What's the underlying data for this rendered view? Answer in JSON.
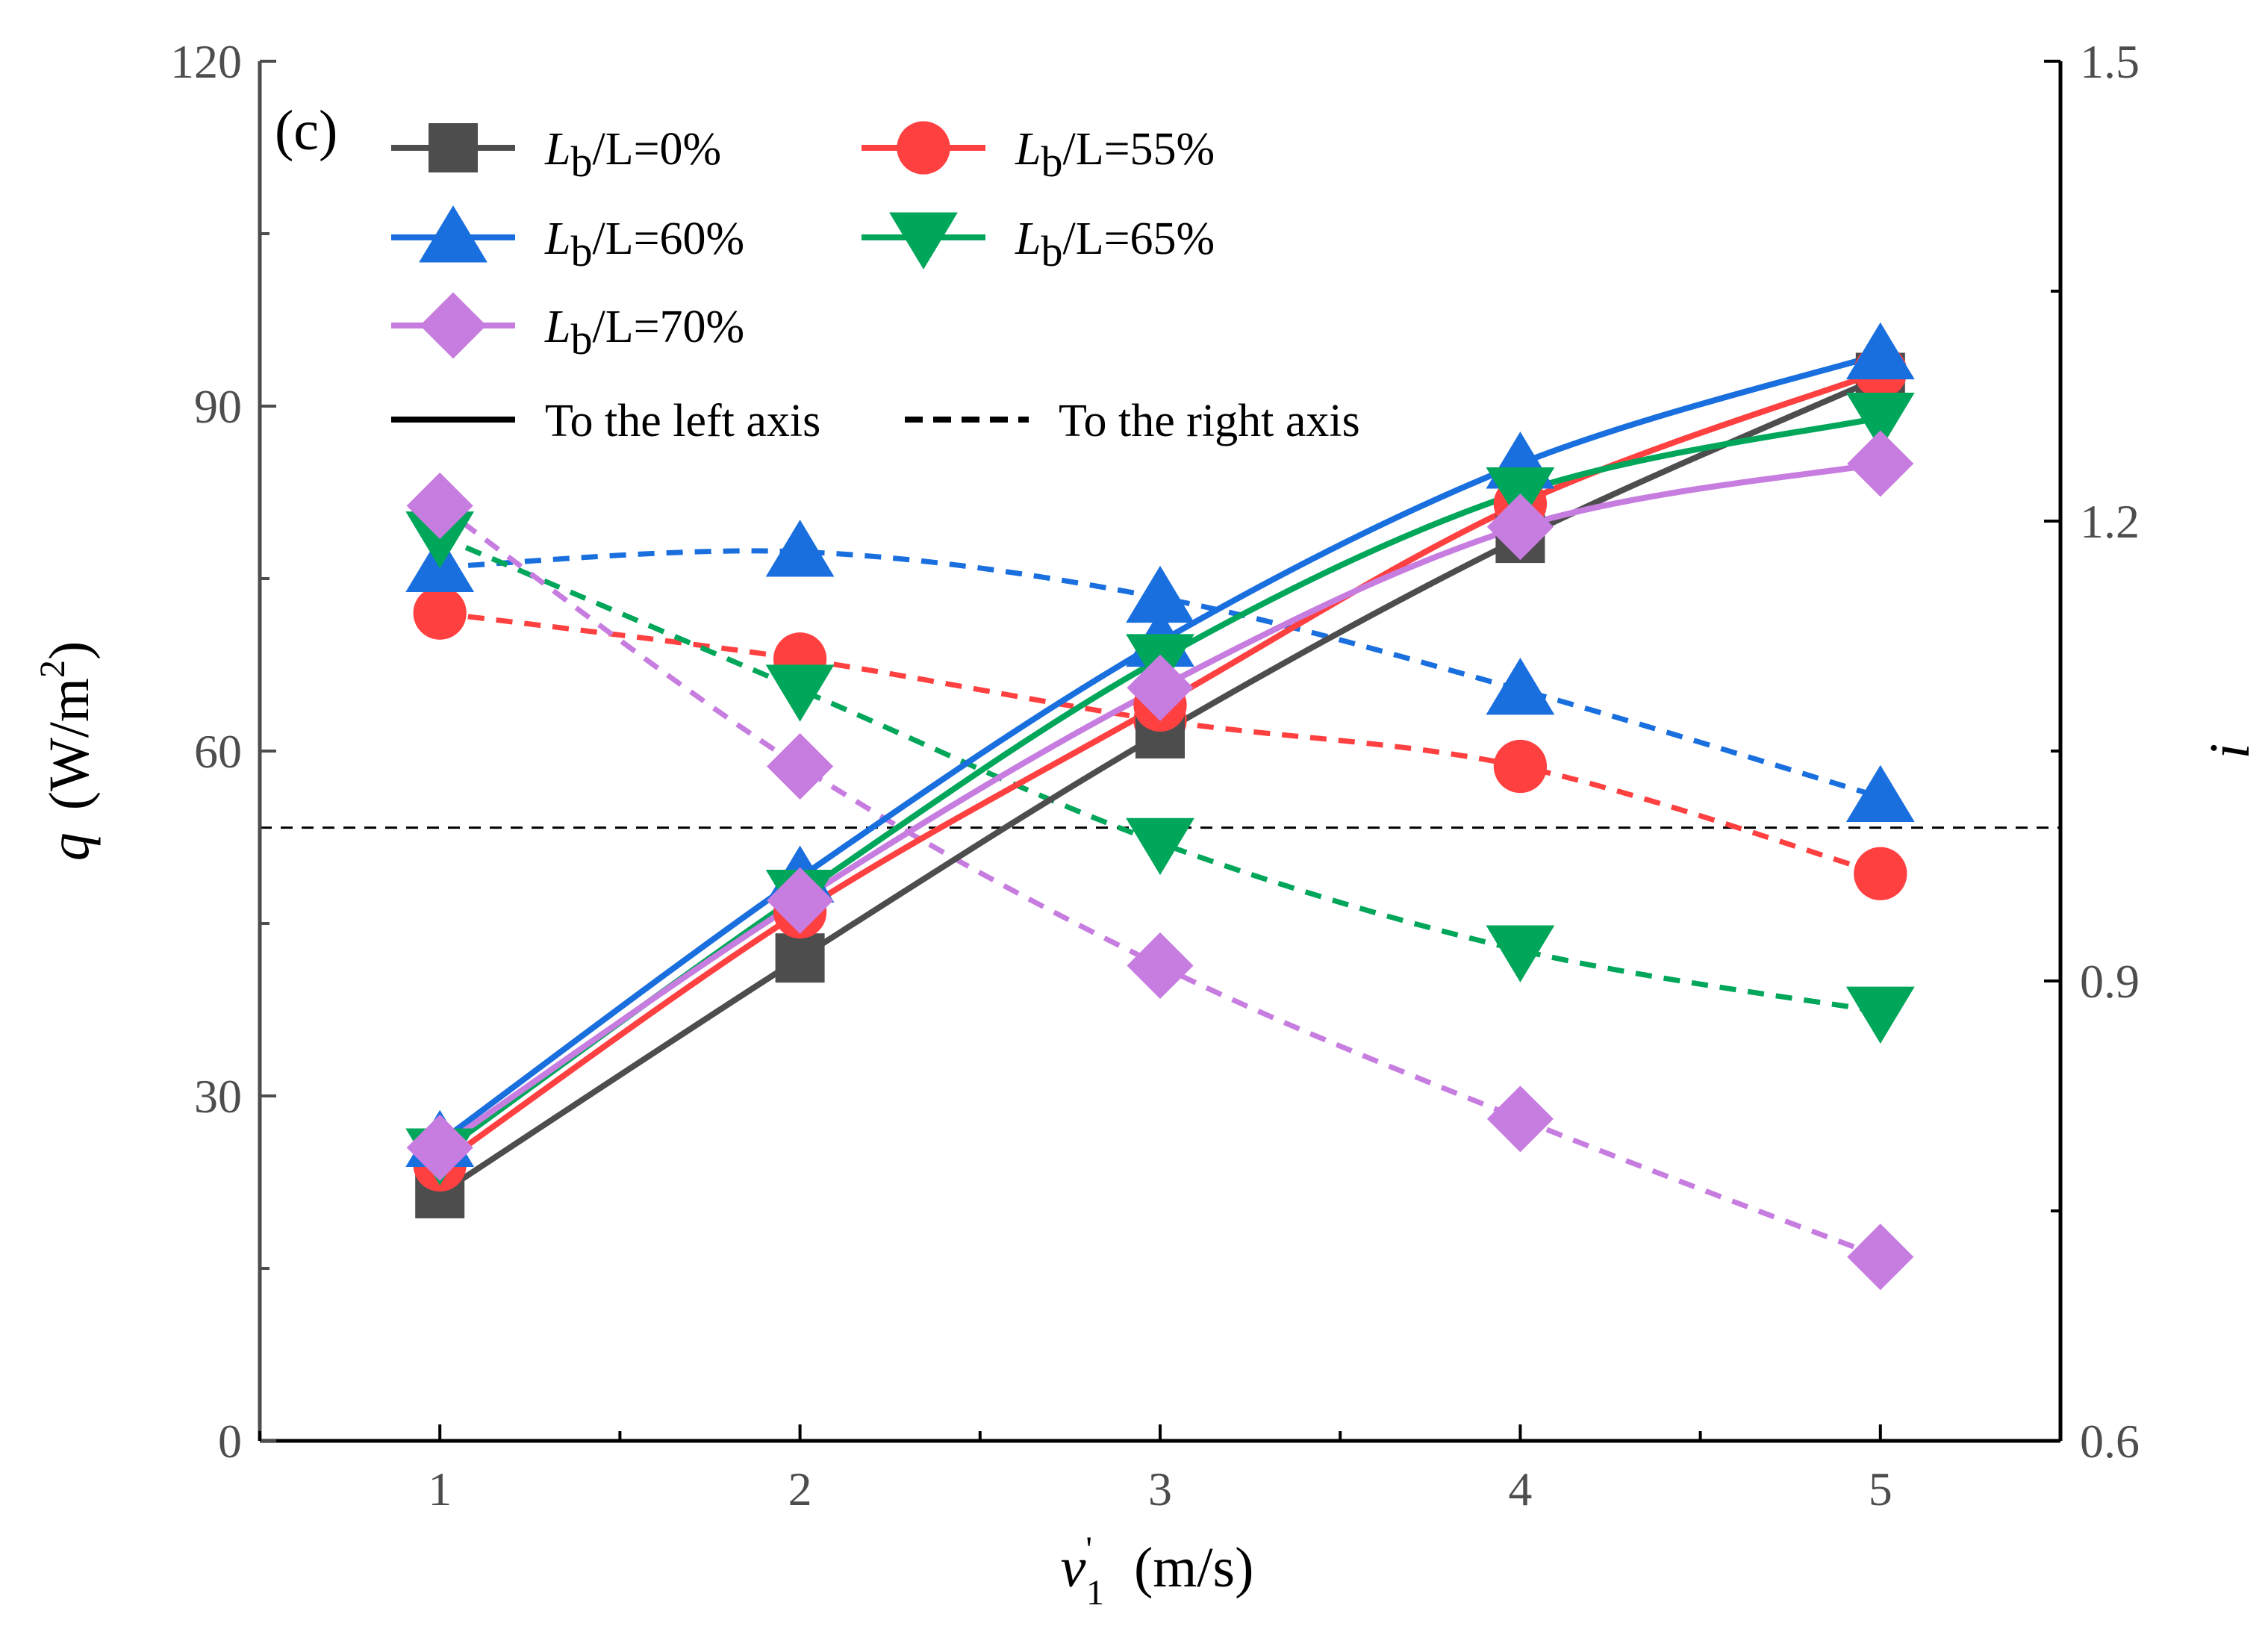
{
  "chart_data": {
    "type": "line",
    "panel_label": "(c)",
    "x": [
      1,
      2,
      3,
      4,
      5
    ],
    "x_ticks": [
      "1",
      "2",
      "3",
      "4",
      "5"
    ],
    "xlim": [
      0.5,
      5.5
    ],
    "xlabel": {
      "symbol": "v",
      "superscript": "'",
      "subscript": "1",
      "unit": "(m/s)"
    },
    "ylabel_left": {
      "symbol": "q",
      "unit_prefix": "(W/m",
      "unit_power": "2",
      "unit_suffix": ")"
    },
    "ylabel_right": {
      "symbol": "i"
    },
    "ylim_left": [
      0,
      120
    ],
    "ylim_right": [
      0.6,
      1.5
    ],
    "yticks_left": [
      "0",
      "30",
      "60",
      "90",
      "120"
    ],
    "yticks_right": [
      "0.6",
      "0.9",
      "1.2",
      "1.5"
    ],
    "reference_line_right": 1.0,
    "series": [
      {
        "name": "Lb/L=0%",
        "label_var": "L",
        "label_sub": "b",
        "label_rest": "/L=0%",
        "color": "#4d4d4d",
        "marker": "square",
        "left_values": [
          21.5,
          42.0,
          61.5,
          78.5,
          92.5
        ],
        "right_values": null
      },
      {
        "name": "Lb/L=55%",
        "label_var": "L",
        "label_sub": "b",
        "label_rest": "/L=55%",
        "color": "#ff4040",
        "marker": "circle",
        "left_values": [
          24.0,
          46.0,
          64.0,
          81.5,
          93.0
        ],
        "right_values": [
          1.14,
          1.11,
          1.07,
          1.04,
          0.97
        ]
      },
      {
        "name": "Lb/L=60%",
        "label_var": "L",
        "label_sub": "b",
        "label_rest": "/L=60%",
        "color": "#1a6fdf",
        "marker": "triangle-up",
        "left_values": [
          26.0,
          49.0,
          69.5,
          85.0,
          94.5
        ],
        "right_values": [
          1.17,
          1.18,
          1.15,
          1.09,
          1.02
        ]
      },
      {
        "name": "Lb/L=65%",
        "label_var": "L",
        "label_sub": "b",
        "label_rest": "/L=65%",
        "color": "#00a65a",
        "marker": "triangle-down",
        "left_values": [
          25.0,
          47.5,
          68.0,
          82.5,
          89.0
        ],
        "right_values": [
          1.19,
          1.09,
          0.99,
          0.92,
          0.88
        ]
      },
      {
        "name": "Lb/L=70%",
        "label_var": "L",
        "label_sub": "b",
        "label_rest": "/L=70%",
        "color": "#c77de0",
        "marker": "diamond",
        "left_values": [
          25.5,
          47.0,
          65.5,
          79.5,
          85.0
        ],
        "right_values": [
          1.21,
          1.04,
          0.91,
          0.81,
          0.72
        ]
      }
    ],
    "legend_line_styles": [
      {
        "label": "To the left axis",
        "style": "solid"
      },
      {
        "label": "To the right axis",
        "style": "dashed"
      }
    ],
    "legend_position": "top-left"
  }
}
